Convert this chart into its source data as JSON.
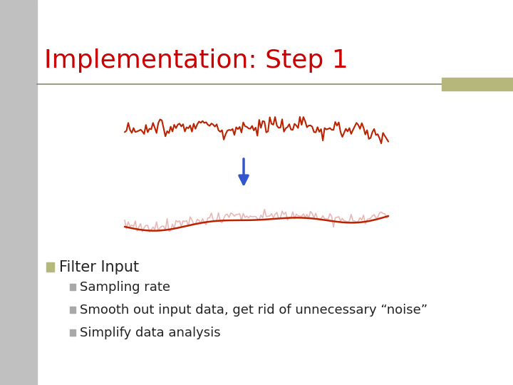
{
  "title": "Implementation: Step 1",
  "title_color": "#CC0000",
  "title_fontsize": 26,
  "bg_color": "#FFFFFF",
  "left_panel_color": "#C0C0C0",
  "separator_line_color": "#8B8B6B",
  "accent_bar_color": "#B5B87A",
  "bullet_color": "#B5B87A",
  "sub_bullet_color": "#A8A8A8",
  "text_color": "#222222",
  "arrow_color": "#3355CC",
  "noisy_line_color": "#BB2200",
  "smooth_line_color": "#BB2200",
  "smooth_line_faint_color": "#E8AAAA",
  "bullet_main": "Filter Input",
  "bullet_sub": [
    "Sampling rate",
    "Smooth out input data, get rid of unnecessary “noise”",
    "Simplify data analysis"
  ],
  "main_fontsize": 15,
  "sub_fontsize": 13
}
